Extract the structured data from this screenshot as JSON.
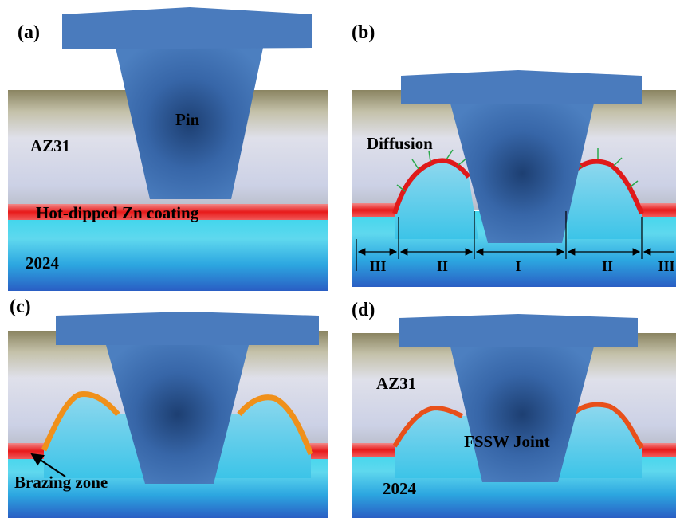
{
  "panels": [
    {
      "label": "(a)",
      "pin": "Pin",
      "upper": "AZ31",
      "coating": "Hot-dipped Zn coating",
      "lower": "2024"
    },
    {
      "label": "(b)",
      "diffusion": "Diffusion",
      "zones": [
        "III",
        "II",
        "I",
        "II",
        "III"
      ]
    },
    {
      "label": "(c)",
      "brazing": "Brazing zone"
    },
    {
      "label": "(d)",
      "upper": "AZ31",
      "joint": "FSSW Joint",
      "lower": "2024"
    }
  ]
}
